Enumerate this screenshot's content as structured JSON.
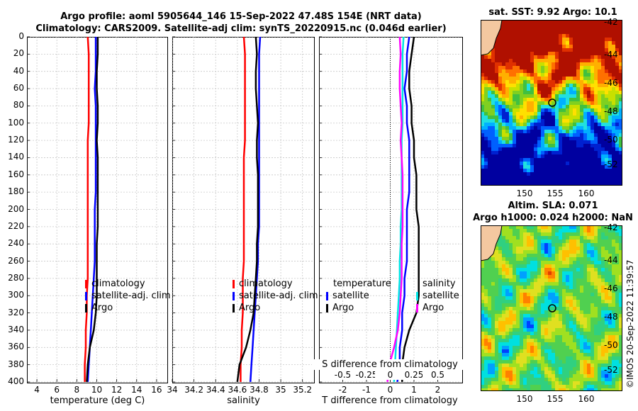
{
  "header": {
    "line1": "Argo profile: aoml 5905644_146 15-Sep-2022 47.48S 154E (NRT data)",
    "line2": "Climatology: CARS2009. Satellite-adj clim: synTS_20220915.nc (0.046d earlier)"
  },
  "colors": {
    "climatology": "#ff0000",
    "satellite": "#0000ff",
    "argo": "#000000",
    "sal_sat": "#00e5e5",
    "sal_diff": "#ff00ff"
  },
  "depth_axis": {
    "ticks": [
      0,
      20,
      40,
      60,
      80,
      100,
      120,
      140,
      160,
      180,
      200,
      220,
      240,
      260,
      280,
      300,
      320,
      340,
      360,
      380,
      400
    ]
  },
  "chart_data": [
    {
      "type": "line",
      "name": "temperature",
      "xlabel": "temperature (deg C)",
      "xlim": [
        3,
        17
      ],
      "ylim": [
        0,
        400
      ],
      "xticks": [
        4,
        6,
        8,
        10,
        12,
        14,
        16
      ],
      "series": [
        {
          "name": "climatology",
          "depth": [
            0,
            20,
            40,
            60,
            80,
            100,
            120,
            140,
            160,
            180,
            200,
            220,
            240,
            260,
            280,
            300,
            320,
            340,
            360,
            380,
            400
          ],
          "values": [
            9.1,
            9.2,
            9.2,
            9.2,
            9.2,
            9.2,
            9.1,
            9.1,
            9.1,
            9.1,
            9.1,
            9.1,
            9.1,
            9.1,
            9.1,
            9.0,
            9.0,
            8.9,
            8.9,
            8.8,
            8.8
          ]
        },
        {
          "name": "satellite-adj. clim",
          "depth": [
            0,
            20,
            40,
            60,
            80,
            100,
            120,
            140,
            160,
            180,
            200,
            220,
            240,
            260,
            280,
            300,
            320,
            340,
            360,
            380,
            400
          ],
          "values": [
            9.9,
            9.9,
            9.9,
            9.8,
            9.9,
            9.9,
            9.9,
            9.9,
            9.9,
            9.9,
            9.8,
            9.8,
            9.8,
            9.8,
            9.7,
            9.6,
            9.5,
            9.4,
            9.3,
            9.2,
            9.1
          ]
        },
        {
          "name": "Argo",
          "depth": [
            0,
            20,
            40,
            60,
            80,
            100,
            120,
            140,
            160,
            180,
            200,
            220,
            240,
            260,
            280,
            300,
            320,
            340,
            360,
            380,
            400
          ],
          "values": [
            10.1,
            10.1,
            10.0,
            10.0,
            10.1,
            10.1,
            10.0,
            10.1,
            10.1,
            10.1,
            10.1,
            10.1,
            10.0,
            10.0,
            10.0,
            10.0,
            9.9,
            9.7,
            9.3,
            9.1,
            9.0
          ]
        }
      ],
      "legend": [
        "climatology",
        "satellite-adj. clim",
        "Argo"
      ]
    },
    {
      "type": "line",
      "name": "salinity",
      "xlabel": "salinity",
      "xlim": [
        34.0,
        35.3
      ],
      "ylim": [
        0,
        400
      ],
      "xticks": [
        34,
        34.2,
        34.4,
        34.6,
        34.8,
        35,
        35.2
      ],
      "series": [
        {
          "name": "climatology",
          "depth": [
            0,
            20,
            40,
            60,
            80,
            100,
            120,
            140,
            160,
            180,
            200,
            220,
            240,
            260,
            280,
            300,
            320,
            340,
            360,
            380,
            400
          ],
          "values": [
            34.66,
            34.67,
            34.67,
            34.67,
            34.67,
            34.67,
            34.67,
            34.66,
            34.66,
            34.66,
            34.66,
            34.66,
            34.66,
            34.66,
            34.65,
            34.65,
            34.65,
            34.64,
            34.64,
            34.63,
            34.63
          ]
        },
        {
          "name": "satellite-adj. clim",
          "depth": [
            0,
            20,
            40,
            60,
            80,
            100,
            120,
            140,
            160,
            180,
            200,
            220,
            240,
            260,
            280,
            300,
            320,
            340,
            360,
            380,
            400
          ],
          "values": [
            34.81,
            34.8,
            34.8,
            34.8,
            34.8,
            34.8,
            34.8,
            34.8,
            34.8,
            34.8,
            34.8,
            34.8,
            34.79,
            34.79,
            34.78,
            34.77,
            34.76,
            34.75,
            34.74,
            34.73,
            34.72
          ]
        },
        {
          "name": "Argo",
          "depth": [
            0,
            20,
            40,
            60,
            80,
            100,
            120,
            140,
            160,
            180,
            200,
            220,
            240,
            260,
            280,
            300,
            320,
            340,
            360,
            380,
            400
          ],
          "values": [
            34.77,
            34.78,
            34.77,
            34.77,
            34.78,
            34.79,
            34.78,
            34.78,
            34.79,
            34.79,
            34.79,
            34.79,
            34.78,
            34.78,
            34.77,
            34.76,
            34.75,
            34.72,
            34.68,
            34.62,
            34.6
          ]
        }
      ],
      "legend": [
        "climatology",
        "satellite-adj. clim",
        "Argo"
      ]
    },
    {
      "type": "line",
      "name": "differences",
      "xlabel": "T difference from climatology",
      "x2label": "S difference from climatology",
      "xlim": [
        -3,
        3
      ],
      "ylim": [
        0,
        400
      ],
      "xticks": [
        -2,
        -1,
        0,
        1,
        2
      ],
      "x2ticks": [
        "-0.5",
        "-0.25",
        "0",
        "0.25",
        "0.5"
      ],
      "series": [
        {
          "name": "temperature satellite",
          "depth": [
            0,
            20,
            40,
            60,
            80,
            100,
            120,
            140,
            160,
            180,
            200,
            220,
            240,
            260,
            280,
            300,
            320,
            340,
            360,
            380,
            400
          ],
          "values": [
            0.8,
            0.7,
            0.7,
            0.6,
            0.7,
            0.7,
            0.8,
            0.8,
            0.8,
            0.8,
            0.7,
            0.7,
            0.7,
            0.7,
            0.6,
            0.6,
            0.5,
            0.5,
            0.4,
            0.4,
            0.3
          ]
        },
        {
          "name": "temperature Argo",
          "depth": [
            0,
            20,
            40,
            60,
            80,
            100,
            120,
            140,
            160,
            180,
            200,
            220,
            240,
            260,
            280,
            300,
            320,
            340,
            360,
            380,
            400
          ],
          "values": [
            1.0,
            0.9,
            0.8,
            0.8,
            0.9,
            0.9,
            1.0,
            1.0,
            1.1,
            1.1,
            1.1,
            1.2,
            1.2,
            1.2,
            1.2,
            1.2,
            1.1,
            0.8,
            0.6,
            0.5,
            0.5
          ]
        },
        {
          "name": "salinity satellite",
          "depth": [
            0,
            20,
            40,
            60,
            80,
            100,
            120,
            140,
            160,
            180,
            200,
            220,
            240,
            260,
            280,
            300,
            320,
            340,
            360,
            380,
            400
          ],
          "values": [
            0.14,
            0.13,
            0.13,
            0.13,
            0.13,
            0.13,
            0.12,
            0.12,
            0.12,
            0.12,
            0.12,
            0.11,
            0.11,
            0.1,
            0.1,
            0.09,
            0.08,
            0.07,
            0.06,
            0.05,
            0.04
          ]
        },
        {
          "name": "salinity Argo",
          "depth": [
            0,
            20,
            40,
            60,
            80,
            100,
            120,
            140,
            160,
            180,
            200,
            220,
            240,
            260,
            280,
            300,
            320,
            340,
            360,
            380,
            400
          ],
          "values": [
            0.1,
            0.11,
            0.1,
            0.1,
            0.11,
            0.12,
            0.11,
            0.12,
            0.13,
            0.13,
            0.13,
            0.13,
            0.12,
            0.12,
            0.12,
            0.11,
            0.1,
            0.08,
            0.04,
            -0.01,
            -0.03
          ]
        }
      ],
      "legend_temperature": {
        "title": "temperature",
        "items": [
          "satellite",
          "Argo"
        ]
      },
      "legend_salinity": {
        "title": "salinity",
        "items": [
          "satellite",
          "Argo"
        ]
      }
    }
  ],
  "maps": {
    "sst": {
      "title": "sat. SST: 9.92 Argo: 10.1",
      "yticks": [
        "-42",
        "-44",
        "-46",
        "-48",
        "-50",
        "-52"
      ],
      "xticks": [
        "150",
        "155",
        "160"
      ]
    },
    "sla": {
      "title1": "Altim. SLA: 0.071",
      "title2": "Argo h1000: 0.024 h2000: NaN",
      "yticks": [
        "-42",
        "-44",
        "-46",
        "-48",
        "-50",
        "-52"
      ],
      "xticks": [
        "150",
        "155",
        "160"
      ]
    }
  },
  "footer": {
    "copyright": "©IMOS 20-Sep-2022 11:39:57"
  }
}
